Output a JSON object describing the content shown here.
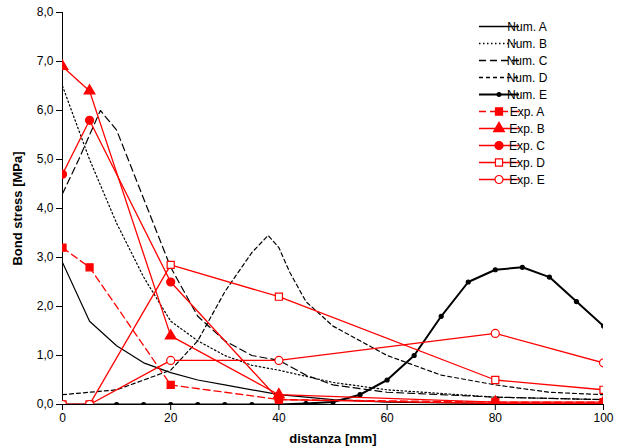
{
  "chart_data": {
    "type": "line",
    "x_label": "distanza [mm]",
    "y_label": "Bond stress [MPa]",
    "xlim": [
      0,
      100
    ],
    "xticks": [
      0,
      20,
      40,
      60,
      80,
      100
    ],
    "ylim": [
      0,
      8
    ],
    "yticks": [
      {
        "value": 0,
        "label": "0,0"
      },
      {
        "value": 1,
        "label": "1,0"
      },
      {
        "value": 2,
        "label": "2,0"
      },
      {
        "value": 3,
        "label": "3,0"
      },
      {
        "value": 4,
        "label": "4,0"
      },
      {
        "value": 5,
        "label": "5,0"
      },
      {
        "value": 6,
        "label": "6,0"
      },
      {
        "value": 7,
        "label": "7,0"
      },
      {
        "value": 8,
        "label": "8,0"
      }
    ],
    "grid": false,
    "legend": "top-right",
    "series": [
      {
        "name": "Num. A",
        "color": "#000000",
        "line_style": "solid",
        "marker": "none",
        "x": [
          0,
          5,
          10,
          15,
          20,
          25,
          30,
          40,
          50,
          60,
          80,
          100
        ],
        "values": [
          2.9,
          1.7,
          1.2,
          0.85,
          0.65,
          0.5,
          0.4,
          0.2,
          0.1,
          0.05,
          0.02,
          0.02
        ]
      },
      {
        "name": "Num. B",
        "color": "#000000",
        "line_style": "dotted",
        "marker": "none",
        "x": [
          0,
          5,
          10,
          15,
          20,
          25,
          30,
          35,
          40,
          50,
          60,
          80,
          100
        ],
        "values": [
          6.5,
          5.0,
          3.7,
          2.6,
          1.7,
          1.3,
          1.0,
          0.8,
          0.7,
          0.45,
          0.3,
          0.15,
          0.1
        ]
      },
      {
        "name": "Num. C",
        "color": "#000000",
        "line_style": "dashed",
        "marker": "none",
        "x": [
          0,
          3,
          7,
          10,
          15,
          20,
          25,
          30,
          35,
          40,
          45,
          50,
          60,
          80,
          100
        ],
        "values": [
          4.3,
          5.0,
          6.0,
          5.6,
          4.2,
          2.8,
          1.8,
          1.3,
          1.0,
          0.9,
          0.6,
          0.4,
          0.25,
          0.15,
          0.1
        ]
      },
      {
        "name": "Num. D",
        "color": "#000000",
        "line_style": "short_dashed",
        "marker": "none",
        "x": [
          0,
          10,
          20,
          25,
          30,
          35,
          38,
          40,
          42,
          45,
          50,
          55,
          60,
          70,
          80,
          90,
          100
        ],
        "values": [
          0.2,
          0.3,
          0.7,
          1.3,
          2.3,
          3.1,
          3.45,
          3.2,
          2.7,
          2.1,
          1.6,
          1.3,
          1.0,
          0.6,
          0.4,
          0.25,
          0.2
        ]
      },
      {
        "name": "Num. E",
        "color": "#000000",
        "line_style": "solid",
        "marker": "circle",
        "x": [
          0,
          5,
          10,
          15,
          20,
          25,
          30,
          35,
          40,
          45,
          50,
          55,
          60,
          65,
          70,
          75,
          80,
          85,
          90,
          95,
          100
        ],
        "values": [
          0,
          0,
          0,
          0,
          0,
          0,
          0,
          0,
          0,
          0.02,
          0.05,
          0.2,
          0.5,
          1.0,
          1.8,
          2.5,
          2.75,
          2.8,
          2.6,
          2.1,
          1.6
        ]
      },
      {
        "name": "Exp. A",
        "color": "#ff0000",
        "line_style": "dashed",
        "marker": "square",
        "x": [
          0,
          5,
          20,
          40,
          80,
          100
        ],
        "values": [
          3.2,
          2.8,
          0.4,
          0.1,
          0.05,
          0.05
        ]
      },
      {
        "name": "Exp. B",
        "color": "#ff0000",
        "line_style": "solid",
        "marker": "triangle",
        "x": [
          0,
          5,
          20,
          40,
          80,
          100
        ],
        "values": [
          6.9,
          6.4,
          1.4,
          0.2,
          0.05,
          0.05
        ]
      },
      {
        "name": "Exp. C",
        "color": "#ff0000",
        "line_style": "solid",
        "marker": "circle",
        "x": [
          0,
          5,
          20,
          40,
          80,
          100
        ],
        "values": [
          4.7,
          5.8,
          2.5,
          0.1,
          0.02,
          0.02
        ]
      },
      {
        "name": "Exp. D",
        "color": "#ff0000",
        "line_style": "solid",
        "marker": "open_square",
        "x": [
          0,
          5,
          20,
          40,
          80,
          100
        ],
        "values": [
          0,
          0,
          2.85,
          2.2,
          0.5,
          0.3
        ]
      },
      {
        "name": "Exp. E",
        "color": "#ff0000",
        "line_style": "solid",
        "marker": "open_circle",
        "x": [
          0,
          5,
          20,
          40,
          80,
          100
        ],
        "values": [
          0,
          0,
          0.9,
          0.9,
          1.45,
          0.85
        ]
      }
    ]
  }
}
